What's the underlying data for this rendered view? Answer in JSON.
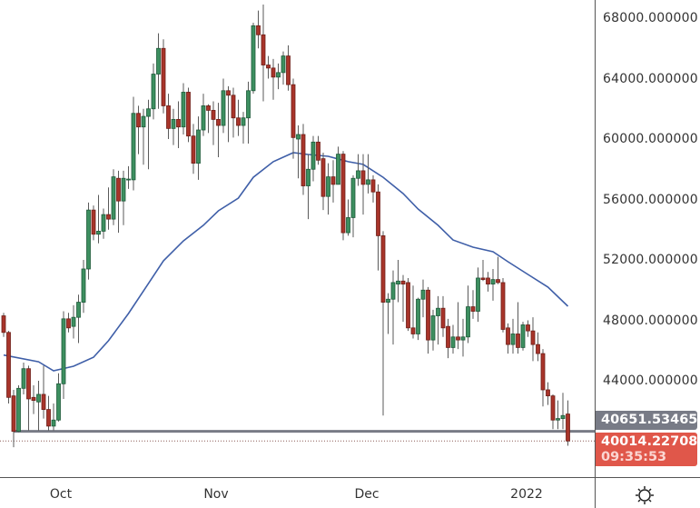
{
  "chart_data": {
    "type": "candlestick",
    "y_axis": {
      "side": "right",
      "ticks": [
        68000,
        64000,
        60000,
        56000,
        52000,
        48000,
        44000
      ],
      "tick_labels": [
        "68000.000000",
        "64000.000000",
        "60000.000000",
        "56000.000000",
        "52000.000000",
        "48000.000000",
        "44000.000000"
      ]
    },
    "x_axis": {
      "tick_labels": [
        {
          "date": "2021-10-01",
          "label": "Oct"
        },
        {
          "date": "2021-11-01",
          "label": "Nov"
        },
        {
          "date": "2021-12-01",
          "label": "Dec"
        },
        {
          "date": "2022-01-01",
          "label": "2022"
        }
      ]
    },
    "grid": false,
    "colors": {
      "up": "#3d8f60",
      "up_border": "#1e5a3a",
      "down": "#a8342a",
      "down_border": "#6e1f18",
      "wick": "#5a5a5a",
      "ma": "#3f5fa8",
      "level": "#787b86",
      "last": "#e0574a"
    },
    "candles_ohlc": [
      [
        "2021-09-19",
        48300,
        48500,
        46900,
        47200
      ],
      [
        "2021-09-20",
        47200,
        47300,
        42500,
        42900
      ],
      [
        "2021-09-21",
        43000,
        43400,
        39600,
        40650
      ],
      [
        "2021-09-22",
        40650,
        43700,
        40600,
        43500
      ],
      [
        "2021-09-23",
        43500,
        45200,
        43100,
        44800
      ],
      [
        "2021-09-24",
        44800,
        45000,
        40700,
        42800
      ],
      [
        "2021-09-25",
        42900,
        43700,
        41800,
        42700
      ],
      [
        "2021-09-26",
        42600,
        44000,
        40700,
        43100
      ],
      [
        "2021-09-27",
        43100,
        45000,
        41500,
        42100
      ],
      [
        "2021-09-28",
        42100,
        43000,
        40700,
        41000
      ],
      [
        "2021-09-29",
        41000,
        42500,
        40700,
        41400
      ],
      [
        "2021-09-30",
        41400,
        44500,
        41300,
        43800
      ],
      [
        "2021-10-01",
        43800,
        48600,
        42800,
        48100
      ],
      [
        "2021-10-02",
        48100,
        48500,
        47200,
        47500
      ],
      [
        "2021-10-03",
        47600,
        49000,
        46800,
        48200
      ],
      [
        "2021-10-04",
        48200,
        49700,
        46500,
        49200
      ],
      [
        "2021-10-05",
        49200,
        52000,
        48500,
        51400
      ],
      [
        "2021-10-06",
        51400,
        55800,
        50700,
        55300
      ],
      [
        "2021-10-07",
        55300,
        55600,
        53300,
        53700
      ],
      [
        "2021-10-08",
        53700,
        56300,
        53100,
        53900
      ],
      [
        "2021-10-09",
        53900,
        55400,
        53400,
        55000
      ],
      [
        "2021-10-10",
        55000,
        56800,
        54000,
        54700
      ],
      [
        "2021-10-11",
        54700,
        58000,
        54300,
        57500
      ],
      [
        "2021-10-12",
        57400,
        57900,
        53800,
        55900
      ],
      [
        "2021-10-13",
        55900,
        57900,
        54300,
        57400
      ],
      [
        "2021-10-14",
        57300,
        58200,
        56700,
        57350
      ],
      [
        "2021-10-15",
        57300,
        62800,
        56600,
        61700
      ],
      [
        "2021-10-16",
        61700,
        62200,
        59000,
        60800
      ],
      [
        "2021-10-17",
        60800,
        62000,
        58300,
        61500
      ],
      [
        "2021-10-18",
        61500,
        62600,
        58000,
        62000
      ],
      [
        "2021-10-19",
        62000,
        65000,
        61300,
        64300
      ],
      [
        "2021-10-20",
        64300,
        67000,
        62000,
        66000
      ],
      [
        "2021-10-21",
        66000,
        66600,
        61700,
        62200
      ],
      [
        "2021-10-22",
        62200,
        63000,
        60000,
        60700
      ],
      [
        "2021-10-23",
        60700,
        62000,
        59600,
        61300
      ],
      [
        "2021-10-24",
        61300,
        62500,
        59400,
        60800
      ],
      [
        "2021-10-25",
        60800,
        63700,
        60300,
        63100
      ],
      [
        "2021-10-26",
        63100,
        63400,
        59800,
        60200
      ],
      [
        "2021-10-27",
        60200,
        61000,
        57700,
        58400
      ],
      [
        "2021-10-28",
        58400,
        61500,
        57300,
        60600
      ],
      [
        "2021-10-29",
        60600,
        63000,
        60200,
        62200
      ],
      [
        "2021-10-30",
        62200,
        62300,
        60400,
        61900
      ],
      [
        "2021-10-31",
        61900,
        62500,
        59600,
        61300
      ],
      [
        "2021-11-01",
        61300,
        62400,
        58800,
        60900
      ],
      [
        "2021-11-02",
        60900,
        64000,
        60400,
        63200
      ],
      [
        "2021-11-03",
        63200,
        63500,
        59800,
        62900
      ],
      [
        "2021-11-04",
        62900,
        63400,
        60100,
        61400
      ],
      [
        "2021-11-05",
        61400,
        62600,
        60200,
        60900
      ],
      [
        "2021-11-06",
        60900,
        61800,
        59700,
        61400
      ],
      [
        "2021-11-07",
        61400,
        63800,
        59700,
        63200
      ],
      [
        "2021-11-08",
        63200,
        67700,
        63000,
        67500
      ],
      [
        "2021-11-09",
        67500,
        68500,
        66000,
        66900
      ],
      [
        "2021-11-10",
        66900,
        68900,
        62500,
        64900
      ],
      [
        "2021-11-11",
        64900,
        65500,
        64000,
        64700
      ],
      [
        "2021-11-12",
        64700,
        65300,
        62600,
        64100
      ],
      [
        "2021-11-13",
        64100,
        65000,
        63300,
        64400
      ],
      [
        "2021-11-14",
        64400,
        65800,
        63600,
        65500
      ],
      [
        "2021-11-15",
        65500,
        66200,
        63200,
        63600
      ],
      [
        "2021-11-16",
        63600,
        64000,
        58700,
        60100
      ],
      [
        "2021-11-17",
        60000,
        60900,
        57400,
        60300
      ],
      [
        "2021-11-18",
        60300,
        61000,
        56300,
        56900
      ],
      [
        "2021-11-19",
        56900,
        59000,
        54700,
        58000
      ],
      [
        "2021-11-20",
        58000,
        60200,
        57200,
        59800
      ],
      [
        "2021-11-21",
        59800,
        60200,
        58300,
        58600
      ],
      [
        "2021-11-22",
        58700,
        59100,
        55300,
        56200
      ],
      [
        "2021-11-23",
        56200,
        58400,
        55000,
        57500
      ],
      [
        "2021-11-24",
        57500,
        58600,
        55800,
        57000
      ],
      [
        "2021-11-25",
        57000,
        59500,
        57000,
        59000
      ],
      [
        "2021-11-26",
        59000,
        59200,
        53300,
        53800
      ],
      [
        "2021-11-27",
        53800,
        56000,
        53600,
        54800
      ],
      [
        "2021-11-28",
        54800,
        57600,
        53500,
        57400
      ],
      [
        "2021-11-29",
        57400,
        59000,
        56900,
        57900
      ],
      [
        "2021-11-30",
        57900,
        59000,
        55000,
        57000
      ],
      [
        "2021-12-01",
        57000,
        59000,
        56400,
        57300
      ],
      [
        "2021-12-02",
        57300,
        57600,
        55800,
        56500
      ],
      [
        "2021-12-03",
        56500,
        57000,
        51300,
        53600
      ],
      [
        "2021-12-04",
        53600,
        53900,
        41700,
        49200
      ],
      [
        "2021-12-05",
        49200,
        49800,
        47100,
        49400
      ],
      [
        "2021-12-06",
        49400,
        51300,
        46400,
        50500
      ],
      [
        "2021-12-07",
        50400,
        52000,
        49200,
        50600
      ],
      [
        "2021-12-08",
        50600,
        51000,
        47900,
        50400
      ],
      [
        "2021-12-09",
        50500,
        50800,
        47300,
        47500
      ],
      [
        "2021-12-10",
        47500,
        50300,
        46800,
        47100
      ],
      [
        "2021-12-11",
        47100,
        49500,
        46700,
        49400
      ],
      [
        "2021-12-12",
        49400,
        50700,
        48200,
        50000
      ],
      [
        "2021-12-13",
        50000,
        50200,
        45800,
        46700
      ],
      [
        "2021-12-14",
        46700,
        48700,
        46000,
        48300
      ],
      [
        "2021-12-15",
        48300,
        49600,
        46400,
        48800
      ],
      [
        "2021-12-16",
        48800,
        49600,
        46900,
        47500
      ],
      [
        "2021-12-17",
        47600,
        48100,
        45500,
        46200
      ],
      [
        "2021-12-18",
        46200,
        47700,
        45800,
        46900
      ],
      [
        "2021-12-19",
        46900,
        49200,
        46100,
        46700
      ],
      [
        "2021-12-20",
        46700,
        48100,
        45600,
        46900
      ],
      [
        "2021-12-21",
        46900,
        50300,
        46500,
        48900
      ],
      [
        "2021-12-22",
        48900,
        50000,
        48100,
        48600
      ],
      [
        "2021-12-23",
        48600,
        51500,
        47900,
        50800
      ],
      [
        "2021-12-24",
        50800,
        52000,
        50600,
        50700
      ],
      [
        "2021-12-25",
        50800,
        51200,
        49900,
        50400
      ],
      [
        "2021-12-26",
        50400,
        51400,
        49300,
        50700
      ],
      [
        "2021-12-27",
        50700,
        52200,
        50400,
        50500
      ],
      [
        "2021-12-28",
        50500,
        50800,
        47200,
        47400
      ],
      [
        "2021-12-29",
        47500,
        47800,
        45800,
        46400
      ],
      [
        "2021-12-30",
        46400,
        48100,
        45800,
        47100
      ],
      [
        "2021-12-31",
        47100,
        49200,
        45800,
        46200
      ],
      [
        "2022-01-01",
        46200,
        47900,
        46000,
        47700
      ],
      [
        "2022-01-02",
        47700,
        48000,
        46900,
        47300
      ],
      [
        "2022-01-03",
        47300,
        48200,
        45300,
        46400
      ],
      [
        "2022-01-04",
        46400,
        47200,
        45300,
        45800
      ],
      [
        "2022-01-05",
        45800,
        46100,
        42300,
        43400
      ],
      [
        "2022-01-06",
        43400,
        43900,
        42400,
        43000
      ],
      [
        "2022-01-07",
        43000,
        43100,
        40800,
        41400
      ],
      [
        "2022-01-08",
        41400,
        42700,
        40800,
        41500
      ],
      [
        "2022-01-09",
        41500,
        43200,
        40800,
        41700
      ],
      [
        "2022-01-10",
        41800,
        42700,
        39700,
        40014.23
      ]
    ],
    "moving_average": [
      [
        "2021-09-19",
        45700
      ],
      [
        "2021-09-26",
        45260
      ],
      [
        "2021-09-29",
        44660
      ],
      [
        "2021-10-03",
        44960
      ],
      [
        "2021-10-07",
        45560
      ],
      [
        "2021-10-10",
        46650
      ],
      [
        "2021-10-14",
        48450
      ],
      [
        "2021-10-18",
        50440
      ],
      [
        "2021-10-21",
        51940
      ],
      [
        "2021-10-25",
        53260
      ],
      [
        "2021-10-29",
        54290
      ],
      [
        "2021-11-01",
        55250
      ],
      [
        "2021-11-05",
        56090
      ],
      [
        "2021-11-08",
        57470
      ],
      [
        "2021-11-12",
        58500
      ],
      [
        "2021-11-16",
        59100
      ],
      [
        "2021-11-19",
        58980
      ],
      [
        "2021-11-23",
        58860
      ],
      [
        "2021-11-27",
        58500
      ],
      [
        "2021-11-30",
        58320
      ],
      [
        "2021-12-04",
        57470
      ],
      [
        "2021-12-08",
        56390
      ],
      [
        "2021-12-11",
        55370
      ],
      [
        "2021-12-15",
        54290
      ],
      [
        "2021-12-18",
        53320
      ],
      [
        "2021-12-22",
        52840
      ],
      [
        "2021-12-26",
        52540
      ],
      [
        "2021-12-29",
        51880
      ],
      [
        "2022-01-02",
        51040
      ],
      [
        "2022-01-06",
        50200
      ],
      [
        "2022-01-10",
        48930
      ]
    ],
    "horizontal_level": {
      "value": 40651.534655,
      "label": "40651.534655"
    },
    "last_price": {
      "value": 40014.22708,
      "label": "40014.227080",
      "countdown": "09:35:53"
    }
  },
  "settings_icon": "sun-gear-icon"
}
